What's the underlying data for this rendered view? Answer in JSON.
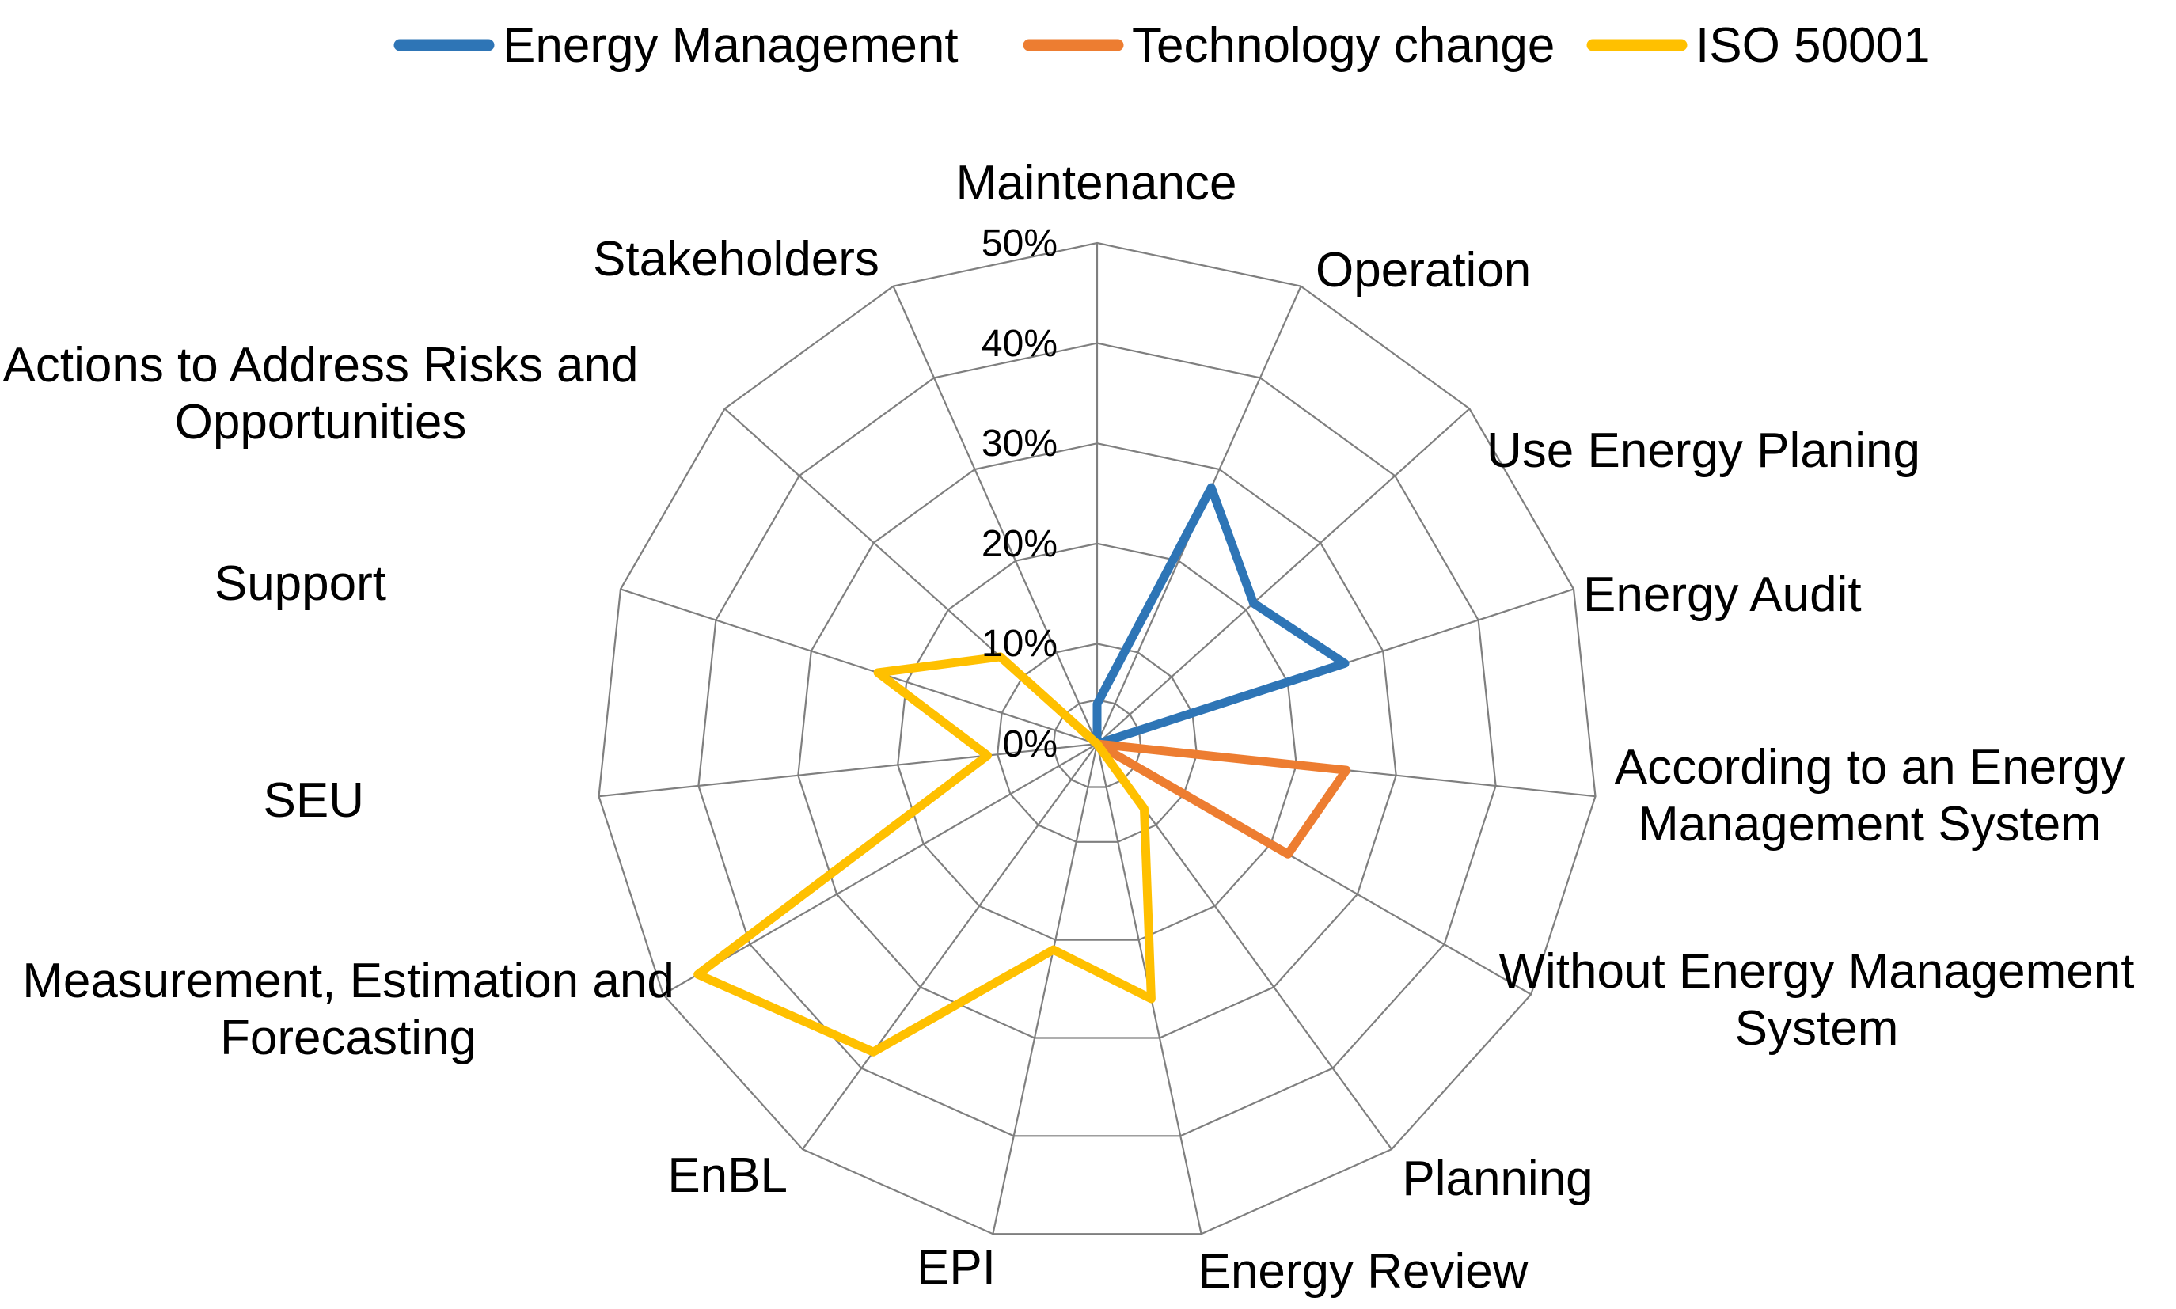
{
  "chart_data": {
    "type": "radar",
    "title": "",
    "categories": [
      "Maintenance",
      "Operation",
      "Use Energy Planing",
      "Energy Audit",
      "According to an Energy Management System",
      "Without Energy Management System",
      "Planning",
      "Energy Review",
      "EPI",
      "EnBL",
      "Measurement, Estimation and Forecasting",
      "SEU",
      "Support",
      "Actions to Address Risks and Opportunities",
      "Stakeholders"
    ],
    "series": [
      {
        "name": "Energy Management",
        "color": "#2E75B6",
        "values": [
          4,
          28,
          21,
          26,
          0,
          0,
          0,
          0,
          0,
          0,
          0,
          0,
          0,
          0,
          0
        ]
      },
      {
        "name": "Technology change",
        "color": "#ED7D31",
        "values": [
          0,
          0,
          0,
          0,
          25,
          22,
          0,
          0,
          0,
          0,
          0,
          0,
          0,
          0,
          0
        ]
      },
      {
        "name": "ISO 50001",
        "color": "#FFC000",
        "values": [
          0,
          0,
          0,
          0,
          0,
          0,
          8,
          26,
          21,
          38,
          46,
          11,
          23,
          13,
          0
        ]
      }
    ],
    "rticks": [
      "0%",
      "10%",
      "20%",
      "30%",
      "40%",
      "50%"
    ],
    "rtick_values": [
      0,
      10,
      20,
      30,
      40,
      50
    ],
    "rmax": 50,
    "grid": true,
    "grid_color": "#7F7F7F",
    "legend_position": "top",
    "background_color": "#FFFFFF",
    "text_color": "#000000"
  }
}
